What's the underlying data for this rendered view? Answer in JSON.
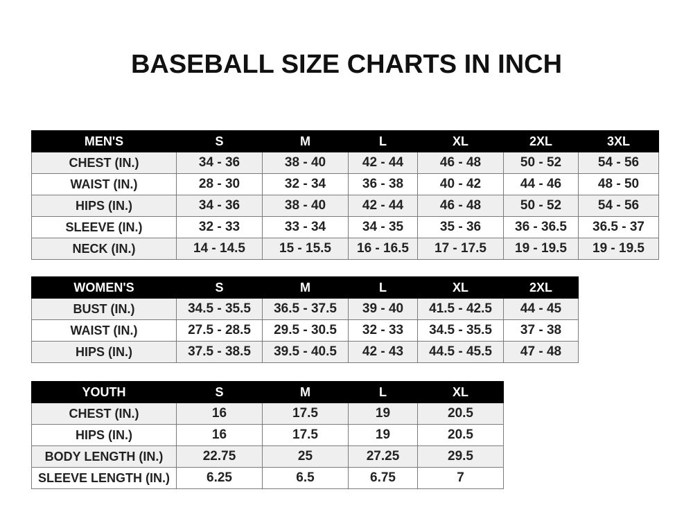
{
  "title": "BASEBALL SIZE CHARTS IN INCH",
  "tables": [
    {
      "header": [
        "MEN'S",
        "S",
        "M",
        "L",
        "XL",
        "2XL",
        "3XL"
      ],
      "rows": [
        [
          "CHEST (IN.)",
          "34 - 36",
          "38 - 40",
          "42 - 44",
          "46 - 48",
          "50 - 52",
          "54 - 56"
        ],
        [
          "WAIST (IN.)",
          "28 - 30",
          "32 - 34",
          "36 - 38",
          "40 - 42",
          "44 - 46",
          "48 - 50"
        ],
        [
          "HIPS (IN.)",
          "34 - 36",
          "38 - 40",
          "42 - 44",
          "46 - 48",
          "50 - 52",
          "54 - 56"
        ],
        [
          "SLEEVE (IN.)",
          "32 - 33",
          "33 - 34",
          "34 - 35",
          "35 - 36",
          "36 - 36.5",
          "36.5 - 37"
        ],
        [
          "NECK (IN.)",
          "14 - 14.5",
          "15 - 15.5",
          "16 - 16.5",
          "17 - 17.5",
          "19 - 19.5",
          "19 - 19.5"
        ]
      ]
    },
    {
      "header": [
        "WOMEN'S",
        "S",
        "M",
        "L",
        "XL",
        "2XL"
      ],
      "rows": [
        [
          "BUST (IN.)",
          "34.5 - 35.5",
          "36.5 - 37.5",
          "39 - 40",
          "41.5 - 42.5",
          "44 - 45"
        ],
        [
          "WAIST (IN.)",
          "27.5 - 28.5",
          "29.5 - 30.5",
          "32 - 33",
          "34.5 - 35.5",
          "37 - 38"
        ],
        [
          "HIPS (IN.)",
          "37.5 - 38.5",
          "39.5 - 40.5",
          "42 - 43",
          "44.5 - 45.5",
          "47 - 48"
        ]
      ]
    },
    {
      "header": [
        "YOUTH",
        "S",
        "M",
        "L",
        "XL"
      ],
      "rows": [
        [
          "CHEST (IN.)",
          "16",
          "17.5",
          "19",
          "20.5"
        ],
        [
          "HIPS (IN.)",
          "16",
          "17.5",
          "19",
          "20.5"
        ],
        [
          "BODY LENGTH (IN.)",
          "22.75",
          "25",
          "27.25",
          "29.5"
        ],
        [
          "SLEEVE LENGTH (IN.)",
          "6.25",
          "6.5",
          "6.75",
          "7"
        ]
      ]
    }
  ]
}
